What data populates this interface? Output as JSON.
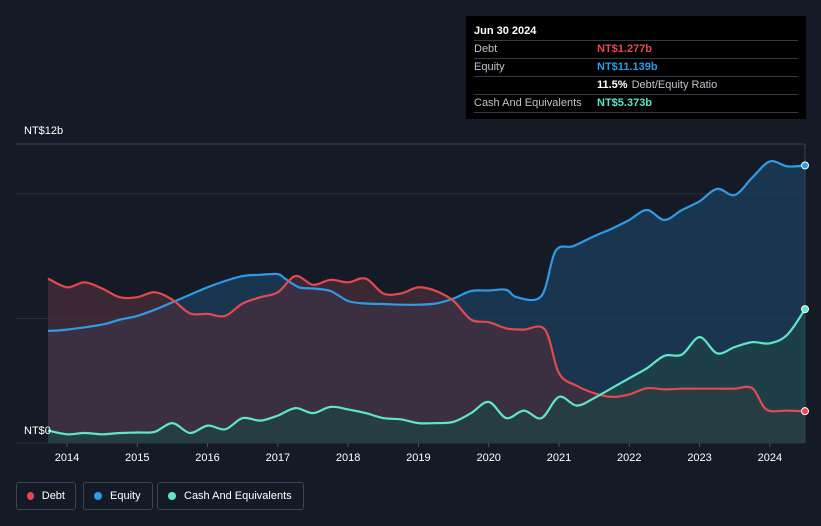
{
  "tooltip": {
    "date": "Jun 30 2024",
    "rows": [
      {
        "name": "Debt",
        "value": "NT$1.277b",
        "color": "#e5484d"
      },
      {
        "name": "Equity",
        "value": "NT$11.139b",
        "color": "#2f9ae5"
      },
      {
        "name": "",
        "value": "11.5%",
        "extra": "Debt/Equity Ratio",
        "color": "#ffffff"
      },
      {
        "name": "Cash And Equivalents",
        "value": "NT$5.373b",
        "color": "#5fe5c9"
      }
    ]
  },
  "legend": [
    {
      "label": "Debt",
      "color": "#e5484d"
    },
    {
      "label": "Equity",
      "color": "#2f9ae5"
    },
    {
      "label": "Cash And Equivalents",
      "color": "#5fe5c9"
    }
  ],
  "chart_data": {
    "type": "area",
    "title": "",
    "xlabel": "",
    "ylabel": "",
    "y_top_label": "NT$12b",
    "y_bottom_label": "NT$0",
    "ylim": [
      0,
      12
    ],
    "xlim": [
      2013.73,
      2024.5
    ],
    "x_ticks": [
      "2014",
      "2015",
      "2016",
      "2017",
      "2018",
      "2019",
      "2020",
      "2021",
      "2022",
      "2023",
      "2024"
    ],
    "grid": true,
    "series": [
      {
        "name": "Equity",
        "color": "#2f9ae5",
        "fill": "#1b4063",
        "points": [
          [
            2013.73,
            4.5
          ],
          [
            2014.0,
            4.55
          ],
          [
            2014.5,
            4.75
          ],
          [
            2014.75,
            4.95
          ],
          [
            2015.0,
            5.1
          ],
          [
            2015.25,
            5.35
          ],
          [
            2015.5,
            5.65
          ],
          [
            2015.75,
            5.95
          ],
          [
            2016.0,
            6.25
          ],
          [
            2016.25,
            6.5
          ],
          [
            2016.5,
            6.7
          ],
          [
            2016.75,
            6.75
          ],
          [
            2017.0,
            6.78
          ],
          [
            2017.1,
            6.6
          ],
          [
            2017.3,
            6.25
          ],
          [
            2017.5,
            6.2
          ],
          [
            2017.75,
            6.1
          ],
          [
            2018.0,
            5.7
          ],
          [
            2018.25,
            5.6
          ],
          [
            2018.5,
            5.58
          ],
          [
            2018.75,
            5.55
          ],
          [
            2019.0,
            5.55
          ],
          [
            2019.25,
            5.6
          ],
          [
            2019.5,
            5.8
          ],
          [
            2019.75,
            6.1
          ],
          [
            2020.0,
            6.12
          ],
          [
            2020.25,
            6.15
          ],
          [
            2020.4,
            5.85
          ],
          [
            2020.75,
            5.9
          ],
          [
            2020.95,
            7.7
          ],
          [
            2021.2,
            7.9
          ],
          [
            2021.5,
            8.3
          ],
          [
            2021.75,
            8.6
          ],
          [
            2022.0,
            8.95
          ],
          [
            2022.25,
            9.35
          ],
          [
            2022.5,
            8.95
          ],
          [
            2022.75,
            9.35
          ],
          [
            2023.0,
            9.7
          ],
          [
            2023.25,
            10.2
          ],
          [
            2023.5,
            9.95
          ],
          [
            2023.75,
            10.65
          ],
          [
            2024.0,
            11.3
          ],
          [
            2024.25,
            11.1
          ],
          [
            2024.5,
            11.139
          ]
        ]
      },
      {
        "name": "Debt",
        "color": "#e5484d",
        "fill": "#4a2f3c",
        "points": [
          [
            2013.73,
            6.6
          ],
          [
            2014.0,
            6.25
          ],
          [
            2014.25,
            6.45
          ],
          [
            2014.5,
            6.2
          ],
          [
            2014.75,
            5.85
          ],
          [
            2015.0,
            5.85
          ],
          [
            2015.25,
            6.05
          ],
          [
            2015.5,
            5.75
          ],
          [
            2015.75,
            5.2
          ],
          [
            2016.0,
            5.18
          ],
          [
            2016.25,
            5.1
          ],
          [
            2016.5,
            5.6
          ],
          [
            2016.75,
            5.85
          ],
          [
            2017.0,
            6.05
          ],
          [
            2017.25,
            6.7
          ],
          [
            2017.5,
            6.35
          ],
          [
            2017.75,
            6.55
          ],
          [
            2018.0,
            6.45
          ],
          [
            2018.25,
            6.6
          ],
          [
            2018.5,
            6.0
          ],
          [
            2018.75,
            6.0
          ],
          [
            2019.0,
            6.25
          ],
          [
            2019.25,
            6.1
          ],
          [
            2019.5,
            5.7
          ],
          [
            2019.75,
            4.95
          ],
          [
            2020.0,
            4.85
          ],
          [
            2020.25,
            4.6
          ],
          [
            2020.5,
            4.55
          ],
          [
            2020.8,
            4.55
          ],
          [
            2021.0,
            2.8
          ],
          [
            2021.25,
            2.3
          ],
          [
            2021.5,
            2.0
          ],
          [
            2021.75,
            1.85
          ],
          [
            2022.0,
            1.95
          ],
          [
            2022.25,
            2.2
          ],
          [
            2022.5,
            2.15
          ],
          [
            2022.75,
            2.18
          ],
          [
            2023.0,
            2.18
          ],
          [
            2023.25,
            2.18
          ],
          [
            2023.5,
            2.18
          ],
          [
            2023.75,
            2.2
          ],
          [
            2023.95,
            1.35
          ],
          [
            2024.25,
            1.3
          ],
          [
            2024.5,
            1.277
          ]
        ]
      },
      {
        "name": "Cash And Equivalents",
        "color": "#5fe5c9",
        "fill": "#1e4545",
        "points": [
          [
            2013.73,
            0.5
          ],
          [
            2014.0,
            0.35
          ],
          [
            2014.25,
            0.4
          ],
          [
            2014.5,
            0.35
          ],
          [
            2014.75,
            0.4
          ],
          [
            2015.0,
            0.42
          ],
          [
            2015.25,
            0.45
          ],
          [
            2015.5,
            0.8
          ],
          [
            2015.75,
            0.4
          ],
          [
            2016.0,
            0.7
          ],
          [
            2016.25,
            0.55
          ],
          [
            2016.5,
            1.0
          ],
          [
            2016.75,
            0.9
          ],
          [
            2017.0,
            1.1
          ],
          [
            2017.25,
            1.4
          ],
          [
            2017.5,
            1.2
          ],
          [
            2017.75,
            1.45
          ],
          [
            2018.0,
            1.35
          ],
          [
            2018.25,
            1.2
          ],
          [
            2018.5,
            1.0
          ],
          [
            2018.75,
            0.95
          ],
          [
            2019.0,
            0.8
          ],
          [
            2019.25,
            0.8
          ],
          [
            2019.5,
            0.85
          ],
          [
            2019.75,
            1.2
          ],
          [
            2020.0,
            1.65
          ],
          [
            2020.25,
            1.0
          ],
          [
            2020.5,
            1.3
          ],
          [
            2020.75,
            1.0
          ],
          [
            2021.0,
            1.85
          ],
          [
            2021.25,
            1.5
          ],
          [
            2021.5,
            1.8
          ],
          [
            2021.75,
            2.2
          ],
          [
            2022.0,
            2.6
          ],
          [
            2022.25,
            3.0
          ],
          [
            2022.5,
            3.5
          ],
          [
            2022.75,
            3.55
          ],
          [
            2023.0,
            4.25
          ],
          [
            2023.25,
            3.6
          ],
          [
            2023.5,
            3.85
          ],
          [
            2023.75,
            4.05
          ],
          [
            2024.0,
            4.0
          ],
          [
            2024.25,
            4.35
          ],
          [
            2024.5,
            5.373
          ]
        ]
      }
    ]
  }
}
